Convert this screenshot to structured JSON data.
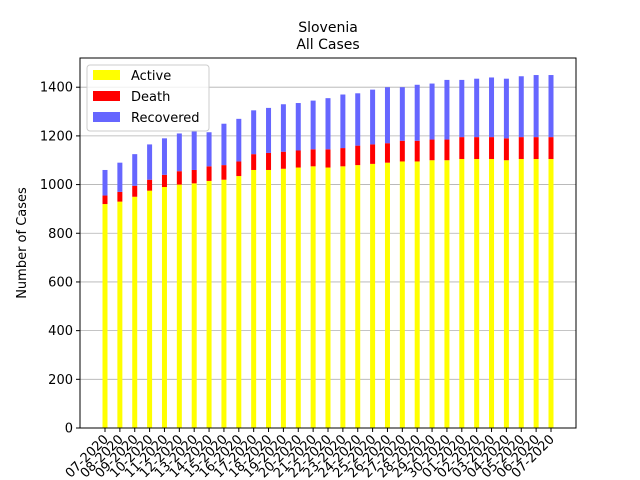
{
  "chart_data": {
    "type": "bar",
    "stacked": true,
    "title": "Slovenia",
    "subtitle": "All Cases",
    "xlabel": "",
    "ylabel": "Number of Cases",
    "ylim": [
      0,
      1520
    ],
    "yticks": [
      0,
      200,
      400,
      600,
      800,
      1000,
      1200,
      1400
    ],
    "grid": "y",
    "legend_position": "top-left",
    "categories": [
      "07-2020",
      "08-2020",
      "09-2020",
      "10-2020",
      "11-2020",
      "12-2020",
      "13-2020",
      "14-2020",
      "15-2020",
      "16-2020",
      "17-2020",
      "18-2020",
      "19-2020",
      "20-2020",
      "21-2020",
      "22-2020",
      "23-2020",
      "24-2020",
      "25-2020",
      "26-2020",
      "27-2020",
      "28-2020",
      "29-2020",
      "30-2020",
      "01-2020",
      "02-2020",
      "03-2020",
      "04-2020",
      "05-2020",
      "06-2020",
      "07-2020"
    ],
    "series": [
      {
        "name": "Active",
        "color": "#ffff00",
        "values": [
          920,
          930,
          950,
          975,
          990,
          1000,
          1005,
          1015,
          1020,
          1035,
          1060,
          1060,
          1065,
          1070,
          1075,
          1070,
          1075,
          1080,
          1085,
          1090,
          1095,
          1095,
          1100,
          1100,
          1105,
          1105,
          1105,
          1100,
          1105,
          1105,
          1105
        ]
      },
      {
        "name": "Death",
        "color": "#ff0000",
        "values": [
          35,
          40,
          45,
          45,
          50,
          55,
          55,
          60,
          60,
          60,
          65,
          70,
          70,
          70,
          70,
          75,
          75,
          80,
          80,
          80,
          85,
          85,
          85,
          85,
          90,
          90,
          90,
          90,
          90,
          90,
          90
        ]
      },
      {
        "name": "Recovered",
        "color": "#6666ff",
        "values": [
          105,
          120,
          130,
          145,
          150,
          155,
          160,
          140,
          170,
          175,
          180,
          185,
          195,
          195,
          200,
          210,
          220,
          215,
          225,
          230,
          220,
          230,
          230,
          245,
          235,
          240,
          245,
          245,
          250,
          255,
          255
        ]
      }
    ]
  }
}
